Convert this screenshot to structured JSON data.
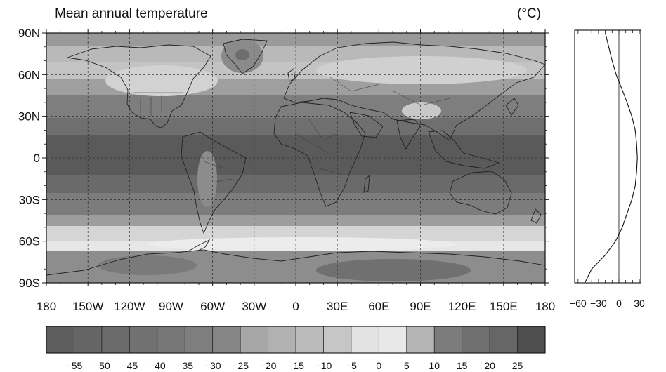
{
  "title": "Mean annual temperature",
  "unit": "(°C)",
  "map": {
    "lat_ticks": [
      "90N",
      "60N",
      "30N",
      "0",
      "30S",
      "60S",
      "90S"
    ],
    "lon_ticks": [
      "180",
      "150W",
      "120W",
      "90W",
      "60W",
      "30W",
      "0",
      "30E",
      "60E",
      "90E",
      "120E",
      "150E",
      "180"
    ],
    "lat_range": [
      -90,
      90
    ],
    "lon_range": [
      -180,
      180
    ],
    "gridlines": "dashed, every 30 degrees",
    "overlays": [
      "coastlines",
      "national borders",
      "US state borders"
    ]
  },
  "zonal_profile": {
    "x_ticks": [
      "−60",
      "−30",
      "0",
      "30"
    ],
    "xlim": [
      -65,
      32
    ],
    "lat": [
      90,
      80,
      70,
      60,
      50,
      40,
      30,
      20,
      10,
      0,
      -10,
      -20,
      -30,
      -40,
      -50,
      -60,
      -70,
      -80,
      -90
    ],
    "temperature": [
      -20,
      -15,
      -10,
      -4,
      4,
      12,
      19,
      24,
      26,
      27,
      26,
      24,
      19,
      12,
      5,
      -5,
      -20,
      -40,
      -50
    ]
  },
  "colorbar": {
    "tick_labels": [
      "−55",
      "−50",
      "−45",
      "−40",
      "−35",
      "−30",
      "−25",
      "−20",
      "−15",
      "−10",
      "−5",
      "0",
      "5",
      "10",
      "15",
      "20",
      "25"
    ],
    "level_colors": [
      "#5e5e5e",
      "#656565",
      "#6b6b6b",
      "#717171",
      "#777777",
      "#7e7e7e",
      "#868686",
      "#a7a7a7",
      "#b1b1b1",
      "#bbbbbb",
      "#c6c6c6",
      "#e3e3e3",
      "#e8e8e8",
      "#b4b4b4",
      "#7c7c7c",
      "#707070",
      "#666666",
      "#4e4e4e"
    ]
  }
}
